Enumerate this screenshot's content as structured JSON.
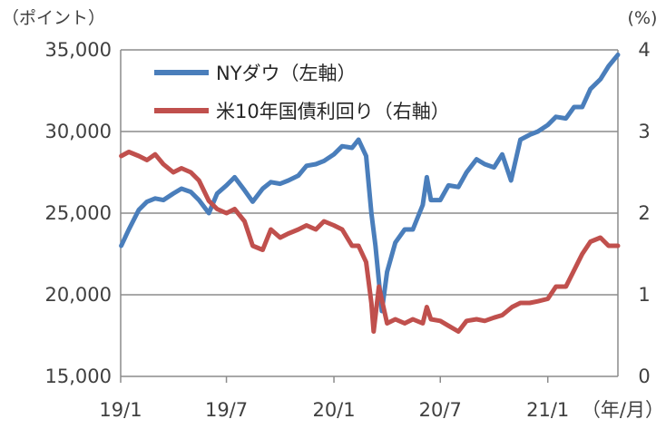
{
  "chart_data": {
    "type": "line",
    "title": "",
    "left_axis": {
      "unit": "（ポイント）",
      "ylim": [
        15000,
        35000
      ],
      "ticks": [
        15000,
        20000,
        25000,
        30000,
        35000
      ],
      "tick_labels": [
        "15,000",
        "20,000",
        "25,000",
        "30,000",
        "35,000"
      ]
    },
    "right_axis": {
      "unit": "(%)",
      "ylim": [
        0,
        4
      ],
      "ticks": [
        0,
        1,
        2,
        3,
        4
      ],
      "tick_labels": [
        "0",
        "1",
        "2",
        "3",
        "4"
      ]
    },
    "x_axis": {
      "unit": "（年/月）",
      "range": [
        "2019-01",
        "2021-05"
      ],
      "tick_positions": [
        "2019-01",
        "2019-07",
        "2020-01",
        "2020-07",
        "2021-01"
      ],
      "tick_labels": [
        "19/1",
        "19/7",
        "20/1",
        "20/7",
        "21/1"
      ]
    },
    "grid": "horizontal",
    "legend_position": "top-left",
    "series": [
      {
        "name": "NYダウ（左軸）",
        "axis": "left",
        "color": "#4a7ebb",
        "x": [
          "2019-01-02",
          "2019-01-15",
          "2019-02-01",
          "2019-02-15",
          "2019-03-01",
          "2019-03-15",
          "2019-04-01",
          "2019-04-15",
          "2019-05-01",
          "2019-05-15",
          "2019-06-01",
          "2019-06-15",
          "2019-07-01",
          "2019-07-15",
          "2019-08-01",
          "2019-08-15",
          "2019-09-01",
          "2019-09-15",
          "2019-10-01",
          "2019-10-15",
          "2019-11-01",
          "2019-11-15",
          "2019-12-01",
          "2019-12-15",
          "2020-01-01",
          "2020-01-15",
          "2020-02-01",
          "2020-02-12",
          "2020-02-25",
          "2020-03-05",
          "2020-03-12",
          "2020-03-23",
          "2020-04-01",
          "2020-04-15",
          "2020-05-01",
          "2020-05-15",
          "2020-06-01",
          "2020-06-08",
          "2020-06-15",
          "2020-07-01",
          "2020-07-15",
          "2020-08-01",
          "2020-08-15",
          "2020-09-01",
          "2020-09-15",
          "2020-10-01",
          "2020-10-15",
          "2020-10-30",
          "2020-11-15",
          "2020-12-01",
          "2020-12-15",
          "2021-01-01",
          "2021-01-15",
          "2021-02-01",
          "2021-02-15",
          "2021-03-01",
          "2021-03-15",
          "2021-04-01",
          "2021-04-15",
          "2021-05-01"
        ],
        "values": [
          23000,
          24000,
          25200,
          25700,
          25900,
          25800,
          26200,
          26500,
          26300,
          25800,
          25000,
          26200,
          26700,
          27200,
          26400,
          25700,
          26500,
          26900,
          26800,
          27000,
          27300,
          27900,
          28000,
          28200,
          28600,
          29100,
          29000,
          29500,
          28500,
          25000,
          23000,
          19000,
          21400,
          23200,
          24000,
          24000,
          25500,
          27200,
          25800,
          25800,
          26700,
          26600,
          27500,
          28300,
          28000,
          27800,
          28600,
          27000,
          29500,
          29800,
          30000,
          30400,
          30900,
          30800,
          31500,
          31500,
          32600,
          33200,
          34000,
          34700
        ]
      },
      {
        "name": "米10年国債利回り（右軸）",
        "axis": "right",
        "color": "#c0504d",
        "x": [
          "2019-01-02",
          "2019-01-15",
          "2019-02-01",
          "2019-02-15",
          "2019-03-01",
          "2019-03-15",
          "2019-04-01",
          "2019-04-15",
          "2019-05-01",
          "2019-05-15",
          "2019-06-01",
          "2019-06-15",
          "2019-07-01",
          "2019-07-15",
          "2019-08-01",
          "2019-08-15",
          "2019-09-01",
          "2019-09-15",
          "2019-10-01",
          "2019-10-15",
          "2019-11-01",
          "2019-11-15",
          "2019-12-01",
          "2019-12-15",
          "2020-01-01",
          "2020-01-15",
          "2020-02-01",
          "2020-02-12",
          "2020-02-25",
          "2020-03-05",
          "2020-03-09",
          "2020-03-18",
          "2020-04-01",
          "2020-04-15",
          "2020-05-01",
          "2020-05-15",
          "2020-06-01",
          "2020-06-08",
          "2020-06-15",
          "2020-07-01",
          "2020-07-15",
          "2020-08-01",
          "2020-08-15",
          "2020-09-01",
          "2020-09-15",
          "2020-10-01",
          "2020-10-15",
          "2020-11-01",
          "2020-11-15",
          "2020-12-01",
          "2020-12-15",
          "2021-01-01",
          "2021-01-15",
          "2021-02-01",
          "2021-02-15",
          "2021-03-01",
          "2021-03-15",
          "2021-04-01",
          "2021-04-15",
          "2021-05-01"
        ],
        "values": [
          2.7,
          2.75,
          2.7,
          2.65,
          2.72,
          2.6,
          2.5,
          2.55,
          2.5,
          2.4,
          2.15,
          2.05,
          2.0,
          2.05,
          1.9,
          1.6,
          1.55,
          1.8,
          1.7,
          1.75,
          1.8,
          1.85,
          1.8,
          1.9,
          1.85,
          1.8,
          1.6,
          1.6,
          1.4,
          0.9,
          0.55,
          1.1,
          0.65,
          0.7,
          0.65,
          0.7,
          0.65,
          0.85,
          0.7,
          0.68,
          0.62,
          0.55,
          0.68,
          0.7,
          0.68,
          0.72,
          0.75,
          0.85,
          0.9,
          0.9,
          0.92,
          0.95,
          1.1,
          1.1,
          1.3,
          1.5,
          1.65,
          1.7,
          1.6,
          1.6
        ]
      }
    ]
  }
}
